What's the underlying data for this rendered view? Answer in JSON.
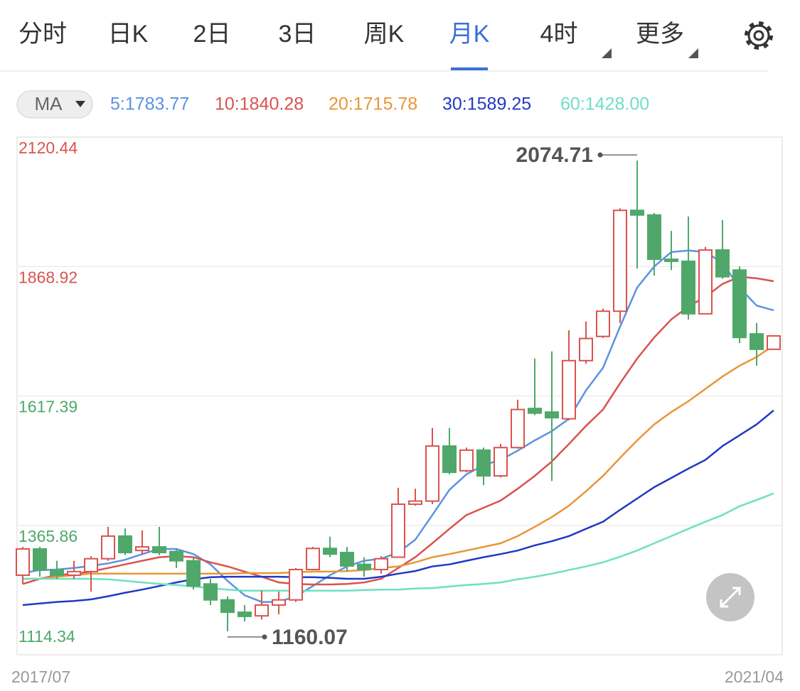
{
  "chart_data": {
    "type": "candlestick",
    "tabs": [
      "分时",
      "日K",
      "2日",
      "3日",
      "周K",
      "月K",
      "4时",
      "更多"
    ],
    "active_tab": "月K",
    "indicator": "MA",
    "categories": [
      "2017/07",
      null,
      null,
      null,
      null,
      null,
      null,
      null,
      null,
      null,
      null,
      null,
      null,
      null,
      null,
      null,
      null,
      null,
      null,
      null,
      null,
      null,
      null,
      null,
      null,
      null,
      null,
      null,
      null,
      null,
      null,
      null,
      null,
      null,
      null,
      null,
      null,
      null,
      null,
      null,
      null,
      null,
      null,
      null,
      "2021/04"
    ],
    "open": [
      1269,
      1320,
      1279,
      1269,
      1276,
      1301,
      1345,
      1317,
      1324,
      1315,
      1297,
      1252,
      1221,
      1197,
      1190,
      1211,
      1221,
      1280,
      1321,
      1313,
      1290,
      1280,
      1304,
      1407,
      1413,
      1520,
      1472,
      1512,
      1462,
      1517,
      1593,
      1586,
      1573,
      1686,
      1733,
      1782,
      1978,
      1969,
      1883,
      1879,
      1777,
      1901,
      1862,
      1738,
      1708
    ],
    "high": [
      1324,
      1324,
      1297,
      1297,
      1306,
      1363,
      1360,
      1356,
      1363,
      1321,
      1304,
      1262,
      1228,
      1211,
      1239,
      1237,
      1283,
      1324,
      1344,
      1324,
      1304,
      1306,
      1439,
      1437,
      1555,
      1555,
      1517,
      1517,
      1524,
      1610,
      1690,
      1704,
      1745,
      1762,
      1787,
      1982,
      2074.71,
      1973,
      1938,
      1966,
      1907,
      1959,
      1869,
      1759,
      1735
    ],
    "low": [
      1252,
      1266,
      1262,
      1262,
      1237,
      1297,
      1308,
      1310,
      1308,
      1283,
      1241,
      1211,
      1160.07,
      1179,
      1183,
      1193,
      1217,
      1279,
      1304,
      1276,
      1266,
      1272,
      1304,
      1404,
      1407,
      1465,
      1469,
      1444,
      1459,
      1515,
      1580,
      1452,
      1570,
      1680,
      1730,
      1759,
      1865,
      1851,
      1862,
      1766,
      1777,
      1845,
      1720,
      1676,
      1707
    ],
    "close": [
      1320,
      1279,
      1269,
      1276,
      1301,
      1345,
      1313,
      1324,
      1313,
      1297,
      1248,
      1221,
      1197,
      1189,
      1211,
      1221,
      1280,
      1321,
      1310,
      1287,
      1280,
      1301,
      1407,
      1413,
      1520,
      1469,
      1512,
      1462,
      1517,
      1591,
      1584,
      1575,
      1686,
      1729,
      1782,
      1978,
      1969,
      1883,
      1879,
      1777,
      1901,
      1849,
      1731,
      1708,
      1734
    ],
    "up_color": "#d9534f",
    "down_color": "#4fa86a",
    "series": [
      {
        "name": "5:1783.77",
        "color": "#5b93e0",
        "values": [
          1273,
          1279,
          1280,
          1283,
          1287,
          1292,
          1299,
          1310,
          1320,
          1320,
          1310,
          1290,
          1258,
          1230,
          1217,
          1217,
          1228,
          1248,
          1269,
          1286,
          1297,
          1301,
          1313,
          1338,
          1386,
          1435,
          1465,
          1483,
          1493,
          1511,
          1531,
          1549,
          1573,
          1628,
          1672,
          1752,
          1828,
          1869,
          1897,
          1900,
          1897,
          1876,
          1828,
          1793,
          1783.77
        ]
      },
      {
        "name": "10:1840.28",
        "color": "#d9534f",
        "values": [
          1252,
          1262,
          1269,
          1272,
          1276,
          1283,
          1290,
          1297,
          1304,
          1306,
          1304,
          1294,
          1286,
          1276,
          1266,
          1255,
          1252,
          1251,
          1251,
          1252,
          1255,
          1262,
          1283,
          1304,
          1331,
          1359,
          1386,
          1400,
          1414,
          1437,
          1462,
          1490,
          1524,
          1559,
          1591,
          1642,
          1690,
          1731,
          1766,
          1791,
          1810,
          1835,
          1849,
          1846,
          1840.28
        ]
      },
      {
        "name": "20:1715.78",
        "color": "#e8963a",
        "values": [
          1262,
          1262,
          1266,
          1269,
          1272,
          1272,
          1272,
          1272,
          1272,
          1272,
          1272,
          1272,
          1272,
          1273,
          1273,
          1273,
          1275,
          1276,
          1276,
          1277,
          1279,
          1283,
          1286,
          1294,
          1304,
          1310,
          1317,
          1324,
          1331,
          1345,
          1363,
          1382,
          1404,
          1432,
          1462,
          1497,
          1531,
          1562,
          1586,
          1607,
          1631,
          1655,
          1676,
          1693,
          1715.78
        ]
      },
      {
        "name": "30:1589.25",
        "color": "#2239c4",
        "values": [
          1211,
          1214,
          1217,
          1219,
          1222,
          1228,
          1235,
          1241,
          1248,
          1255,
          1261,
          1265,
          1266,
          1266,
          1266,
          1266,
          1265,
          1265,
          1264,
          1262,
          1262,
          1266,
          1272,
          1277,
          1286,
          1290,
          1297,
          1304,
          1310,
          1317,
          1327,
          1335,
          1345,
          1359,
          1373,
          1396,
          1418,
          1440,
          1458,
          1476,
          1493,
          1520,
          1541,
          1562,
          1589.25
        ]
      },
      {
        "name": "60:1428.00",
        "color": "#6ee0c4",
        "values": [
          1262,
          1262,
          1262,
          1262,
          1262,
          1261,
          1258,
          1255,
          1252,
          1250,
          1247,
          1244,
          1241,
          1239,
          1239,
          1239,
          1239,
          1239,
          1239,
          1239,
          1240,
          1241,
          1241,
          1243,
          1244,
          1247,
          1250,
          1252,
          1255,
          1261,
          1266,
          1272,
          1279,
          1286,
          1294,
          1305,
          1317,
          1331,
          1345,
          1359,
          1373,
          1386,
          1403,
          1415,
          1428
        ]
      }
    ],
    "ylim": [
      1114.34,
      2120.44
    ],
    "yticks": [
      2120.44,
      1868.92,
      1617.39,
      1365.86,
      1114.34
    ],
    "grid": true
  }
}
